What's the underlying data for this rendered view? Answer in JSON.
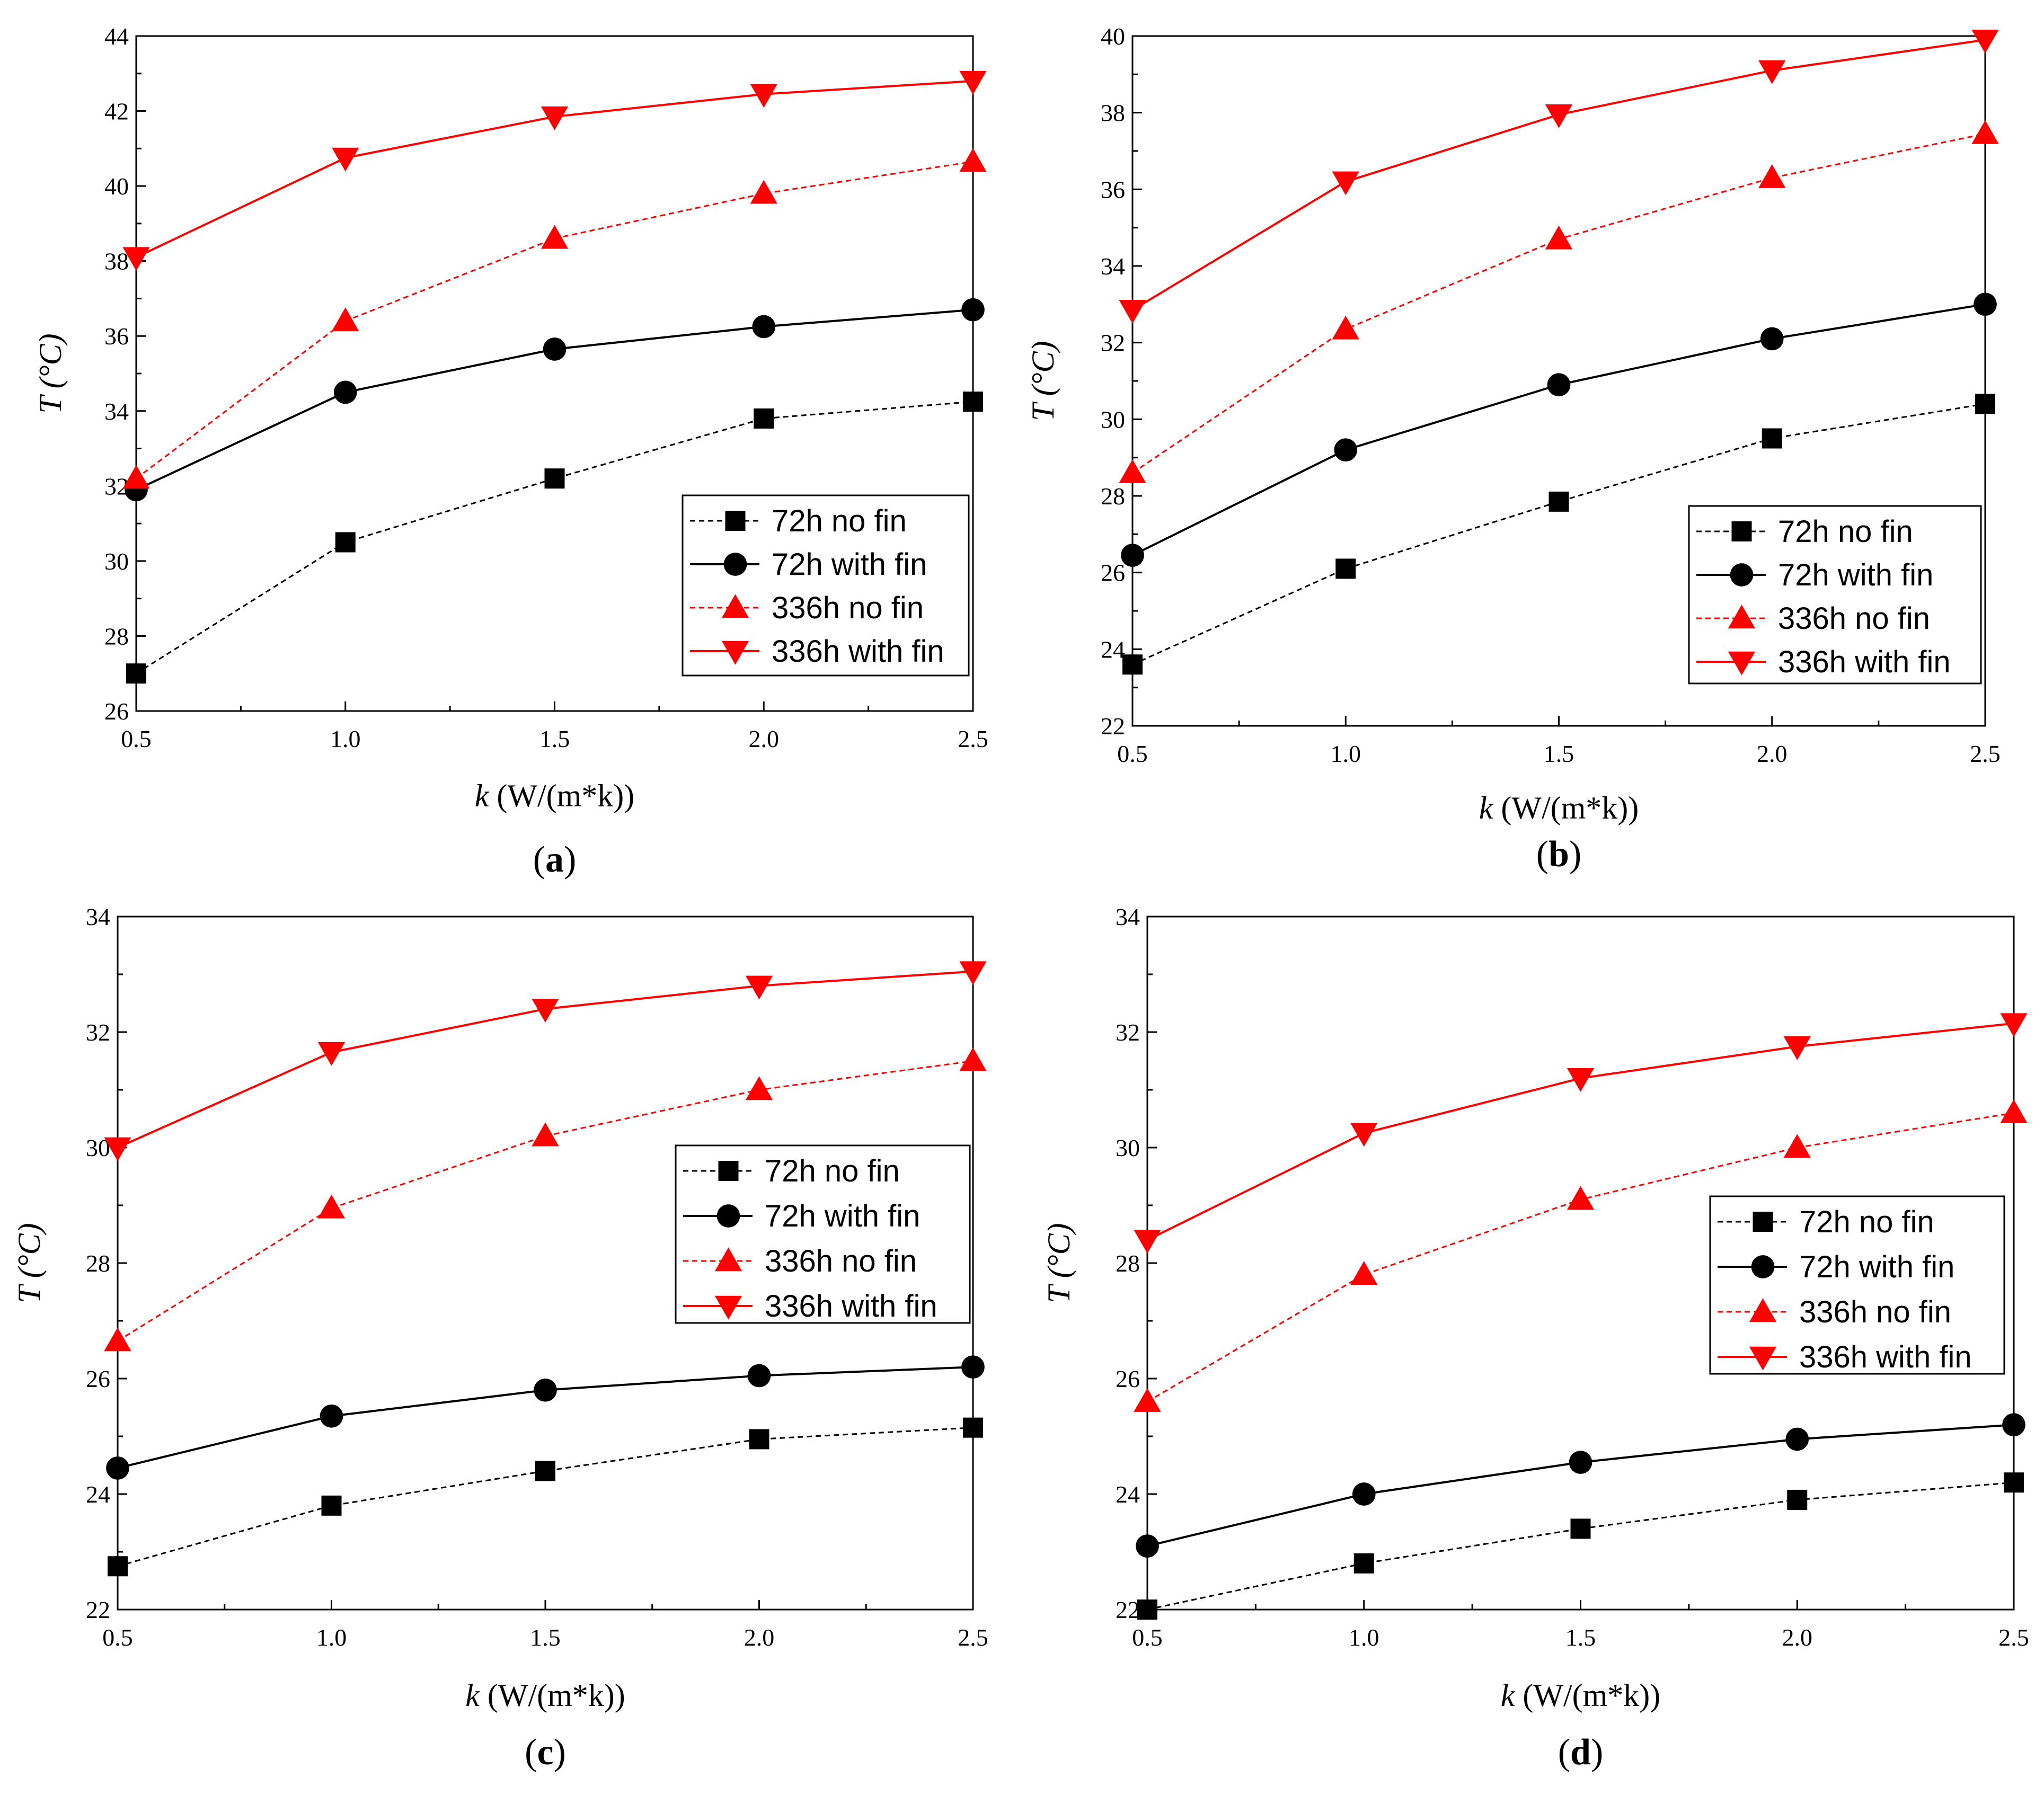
{
  "figure": {
    "legend_labels": [
      "72h no fin",
      "72h with fin",
      "336h no fin",
      "336h with fin"
    ]
  },
  "chart_data": [
    {
      "type": "line",
      "panel": "a",
      "caption": "(a)",
      "xlabel_var": "k",
      "xlabel_unit": " (W/(m*k))",
      "ylabel_var": "T",
      "ylabel_unit": " (°C)",
      "xlim": [
        0.5,
        2.5
      ],
      "ylim": [
        26,
        44
      ],
      "xticks": [
        0.5,
        1.0,
        1.5,
        2.0,
        2.5
      ],
      "yticks": [
        26,
        28,
        30,
        32,
        34,
        36,
        38,
        40,
        42,
        44
      ],
      "x": [
        0.5,
        1.0,
        1.5,
        2.0,
        2.5
      ],
      "legend_position": "bottom-right",
      "series": [
        {
          "name": "72h no fin",
          "values": [
            27.0,
            30.5,
            32.2,
            33.8,
            34.25
          ],
          "color": "#000000",
          "dashed": true,
          "marker": "square"
        },
        {
          "name": "72h with fin",
          "values": [
            31.9,
            34.5,
            35.65,
            36.25,
            36.7
          ],
          "color": "#000000",
          "dashed": false,
          "marker": "circle"
        },
        {
          "name": "336h no fin",
          "values": [
            32.2,
            36.4,
            38.6,
            39.8,
            40.65
          ],
          "color": "#ff0000",
          "dashed": true,
          "marker": "triangle-up"
        },
        {
          "name": "336h with fin",
          "values": [
            38.1,
            40.75,
            41.85,
            42.45,
            42.8
          ],
          "color": "#ff0000",
          "dashed": false,
          "marker": "triangle-down"
        }
      ]
    },
    {
      "type": "line",
      "panel": "b",
      "caption": "(b)",
      "xlabel_var": "k",
      "xlabel_unit": " (W/(m*k))",
      "ylabel_var": "T",
      "ylabel_unit": " (°C)",
      "xlim": [
        0.5,
        2.5
      ],
      "ylim": [
        22,
        40
      ],
      "xticks": [
        0.5,
        1.0,
        1.5,
        2.0,
        2.5
      ],
      "yticks": [
        22,
        24,
        26,
        28,
        30,
        32,
        34,
        36,
        38,
        40
      ],
      "x": [
        0.5,
        1.0,
        1.5,
        2.0,
        2.5
      ],
      "legend_position": "bottom-right",
      "series": [
        {
          "name": "72h no fin",
          "values": [
            23.6,
            26.1,
            27.85,
            29.5,
            30.4
          ],
          "color": "#000000",
          "dashed": true,
          "marker": "square"
        },
        {
          "name": "72h with fin",
          "values": [
            26.45,
            29.2,
            30.9,
            32.1,
            33.0
          ],
          "color": "#000000",
          "dashed": false,
          "marker": "circle"
        },
        {
          "name": "336h no fin",
          "values": [
            28.6,
            32.35,
            34.7,
            36.3,
            37.45
          ],
          "color": "#ff0000",
          "dashed": true,
          "marker": "triangle-up"
        },
        {
          "name": "336h with fin",
          "values": [
            32.85,
            36.2,
            37.95,
            39.1,
            39.9
          ],
          "color": "#ff0000",
          "dashed": false,
          "marker": "triangle-down"
        }
      ]
    },
    {
      "type": "line",
      "panel": "c",
      "caption": "(c)",
      "xlabel_var": "k",
      "xlabel_unit": " (W/(m*k))",
      "ylabel_var": "T",
      "ylabel_unit": " (°C)",
      "xlim": [
        0.5,
        2.5
      ],
      "ylim": [
        22,
        34
      ],
      "xticks": [
        0.5,
        1.0,
        1.5,
        2.0,
        2.5
      ],
      "yticks": [
        22,
        24,
        26,
        28,
        30,
        32,
        34
      ],
      "x": [
        0.5,
        1.0,
        1.5,
        2.0,
        2.5
      ],
      "legend_position": "center-right",
      "series": [
        {
          "name": "72h no fin",
          "values": [
            22.75,
            23.8,
            24.4,
            24.95,
            25.15
          ],
          "color": "#000000",
          "dashed": true,
          "marker": "square"
        },
        {
          "name": "72h with fin",
          "values": [
            24.45,
            25.35,
            25.8,
            26.05,
            26.2
          ],
          "color": "#000000",
          "dashed": false,
          "marker": "circle"
        },
        {
          "name": "336h no fin",
          "values": [
            26.65,
            28.95,
            30.2,
            31.0,
            31.5
          ],
          "color": "#ff0000",
          "dashed": true,
          "marker": "triangle-up"
        },
        {
          "name": "336h with fin",
          "values": [
            30.0,
            31.65,
            32.4,
            32.8,
            33.05
          ],
          "color": "#ff0000",
          "dashed": false,
          "marker": "triangle-down"
        }
      ]
    },
    {
      "type": "line",
      "panel": "d",
      "caption": "(d)",
      "xlabel_var": "k",
      "xlabel_unit": " (W/(m*k))",
      "ylabel_var": "T",
      "ylabel_unit": " (°C)",
      "xlim": [
        0.5,
        2.5
      ],
      "ylim": [
        22,
        34
      ],
      "xticks": [
        0.5,
        1.0,
        1.5,
        2.0,
        2.5
      ],
      "yticks": [
        22,
        24,
        26,
        28,
        30,
        32,
        34
      ],
      "x": [
        0.5,
        1.0,
        1.5,
        2.0,
        2.5
      ],
      "legend_position": "center-right",
      "series": [
        {
          "name": "72h no fin",
          "values": [
            22.0,
            22.8,
            23.4,
            23.9,
            24.2
          ],
          "color": "#000000",
          "dashed": true,
          "marker": "square"
        },
        {
          "name": "72h with fin",
          "values": [
            23.1,
            24.0,
            24.55,
            24.95,
            25.2
          ],
          "color": "#000000",
          "dashed": false,
          "marker": "circle"
        },
        {
          "name": "336h no fin",
          "values": [
            25.6,
            27.8,
            29.1,
            30.0,
            30.6
          ],
          "color": "#ff0000",
          "dashed": true,
          "marker": "triangle-up"
        },
        {
          "name": "336h with fin",
          "values": [
            28.4,
            30.25,
            31.2,
            31.75,
            32.15
          ],
          "color": "#ff0000",
          "dashed": false,
          "marker": "triangle-down"
        }
      ]
    }
  ]
}
